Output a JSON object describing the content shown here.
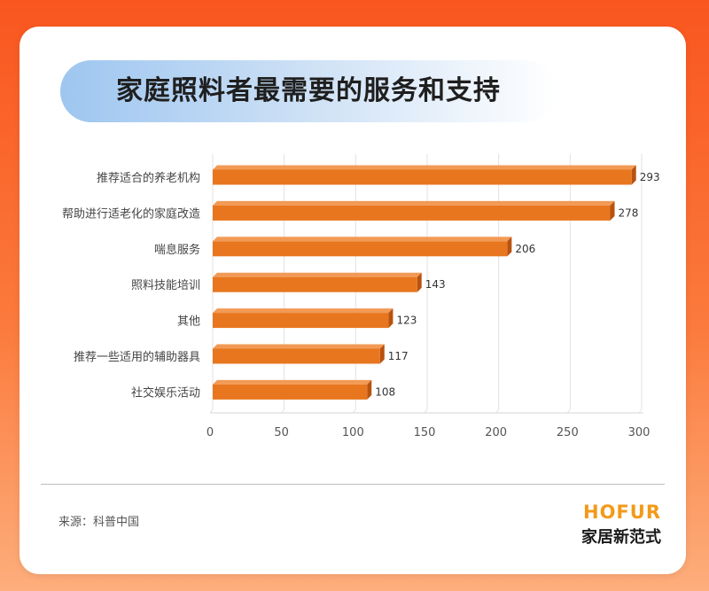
{
  "header": {
    "title": "家庭照料者最需要的服务和支持"
  },
  "chart_data": {
    "type": "bar",
    "orientation": "horizontal",
    "title": "家庭照料者最需要的服务和支持",
    "categories": [
      "推荐适合的养老机构",
      "帮助进行适老化的家庭改造",
      "喘息服务",
      "照料技能培训",
      "其他",
      "推荐一些适用的辅助器具",
      "社交娱乐活动"
    ],
    "values": [
      293,
      278,
      206,
      143,
      123,
      117,
      108
    ],
    "xlim": [
      0,
      300
    ],
    "xticks": [
      0,
      50,
      100,
      150,
      200,
      250,
      300
    ],
    "grid": true,
    "bar_color": "#e8761f",
    "data_labels": true
  },
  "footer": {
    "source": "来源：科普中国",
    "brand_logo": "HOFUR",
    "brand_sub": "家居新范式"
  },
  "colors": {
    "background": "#f9561f",
    "bar": "#e8761f",
    "bar_dark": "#b8520f",
    "brand": "#f29a1a"
  }
}
